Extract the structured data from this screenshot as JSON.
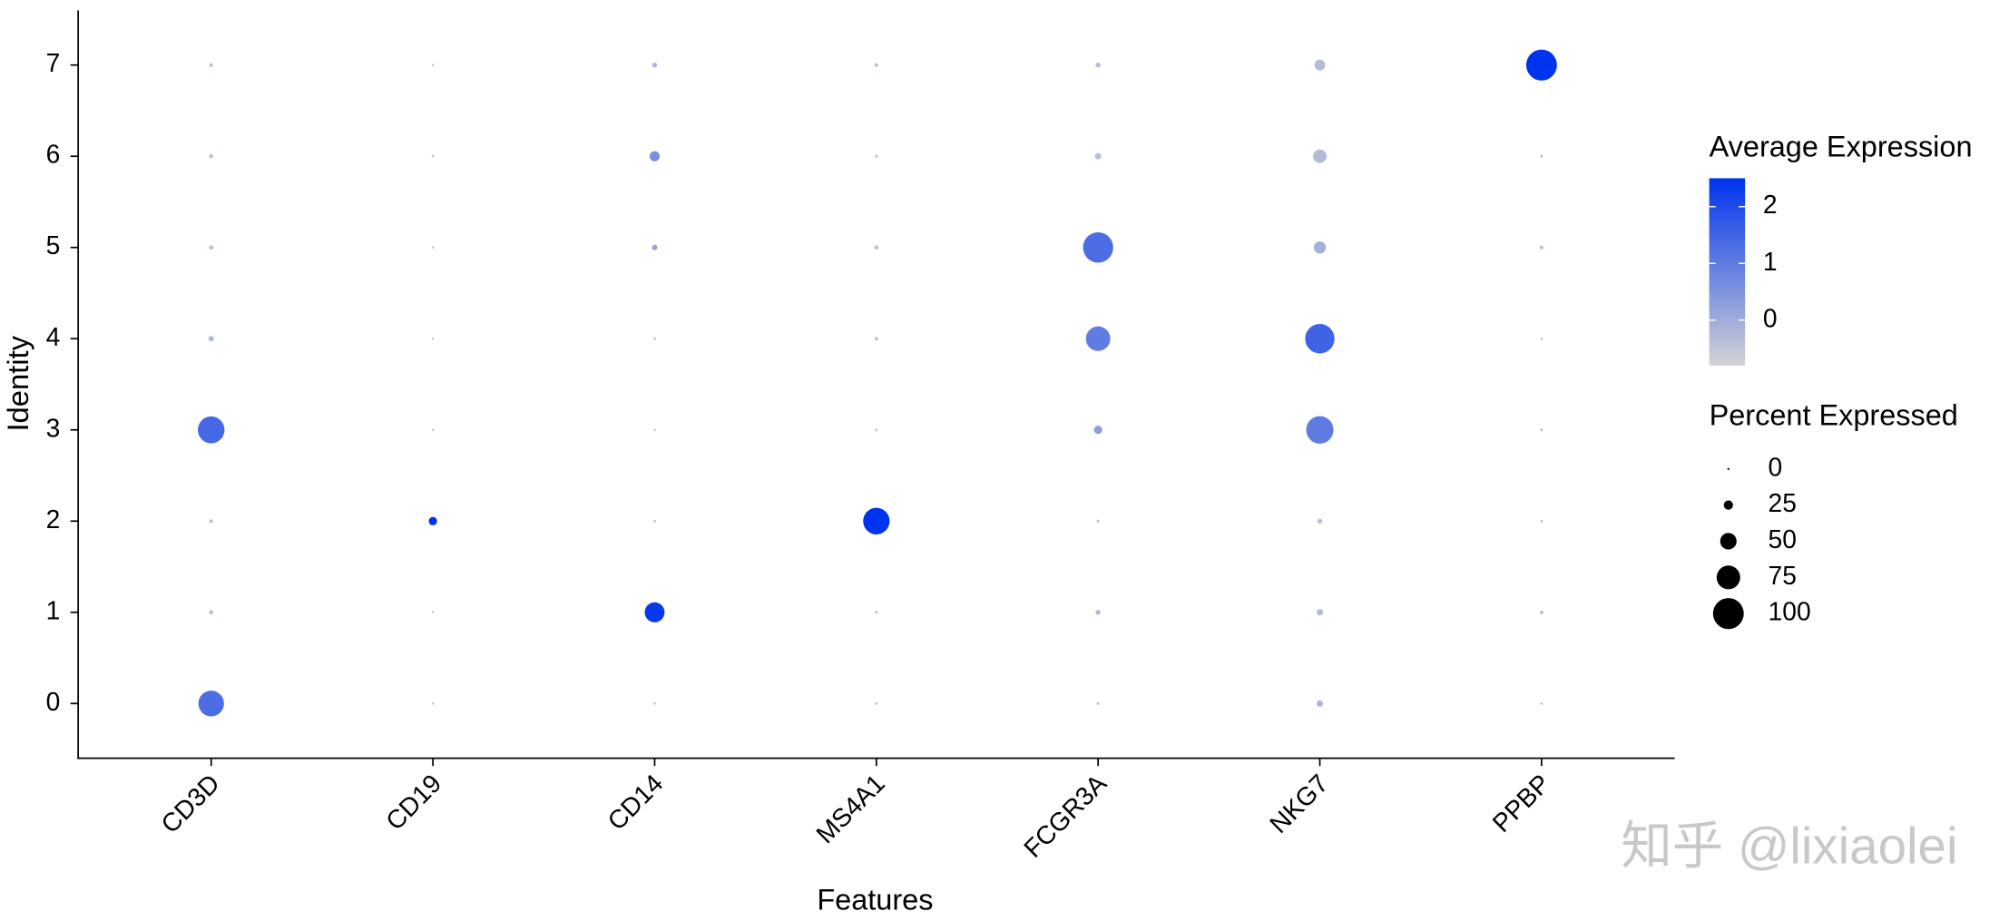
{
  "chart_data": {
    "type": "dot",
    "x_label": "Features",
    "y_label": "Identity",
    "features": [
      "CD3D",
      "CD19",
      "CD14",
      "MS4A1",
      "FCGR3A",
      "NKG7",
      "PPBP"
    ],
    "identities": [
      "0",
      "1",
      "2",
      "3",
      "4",
      "5",
      "6",
      "7"
    ],
    "avg_expression": [
      [
        1.3,
        -0.5,
        -0.5,
        -0.5,
        -0.4,
        -0.2,
        -0.3
      ],
      [
        -0.4,
        -0.5,
        2.4,
        -0.5,
        -0.2,
        -0.3,
        -0.3
      ],
      [
        -0.4,
        2.5,
        -0.5,
        2.5,
        -0.5,
        -0.4,
        -0.3
      ],
      [
        1.4,
        -0.5,
        -0.5,
        -0.5,
        0.3,
        1.0,
        -0.3
      ],
      [
        -0.3,
        -0.5,
        -0.5,
        -0.4,
        1.0,
        1.5,
        -0.3
      ],
      [
        -0.4,
        -0.5,
        0.2,
        -0.5,
        1.3,
        -0.1,
        -0.3
      ],
      [
        -0.4,
        -0.5,
        0.6,
        -0.5,
        -0.4,
        -0.3,
        -0.3
      ],
      [
        -0.4,
        -0.5,
        -0.2,
        -0.4,
        -0.3,
        -0.3,
        2.5
      ]
    ],
    "percent_expressed": [
      [
        82,
        1,
        1,
        2,
        2,
        15,
        1
      ],
      [
        8,
        1,
        62,
        3,
        10,
        15,
        5
      ],
      [
        6,
        22,
        2,
        85,
        3,
        10,
        2
      ],
      [
        86,
        1,
        1,
        2,
        22,
        88,
        2
      ],
      [
        12,
        1,
        2,
        5,
        78,
        95,
        1
      ],
      [
        8,
        1,
        12,
        8,
        98,
        35,
        5
      ],
      [
        7,
        1,
        28,
        3,
        15,
        40,
        2
      ],
      [
        6,
        1,
        10,
        6,
        10,
        30,
        100
      ]
    ],
    "color_legend_title": "Average Expression",
    "color_lim": [
      -0.8,
      2.5
    ],
    "color_ticks": [
      0,
      1,
      2
    ],
    "colors": [
      "#D3D3D3",
      "#0033EE"
    ],
    "size_legend_title": "Percent Expressed",
    "size_lim": [
      0,
      100
    ],
    "size_ticks": [
      0,
      25,
      50,
      75,
      100
    ],
    "watermark": "知乎 @lixiaolei"
  }
}
